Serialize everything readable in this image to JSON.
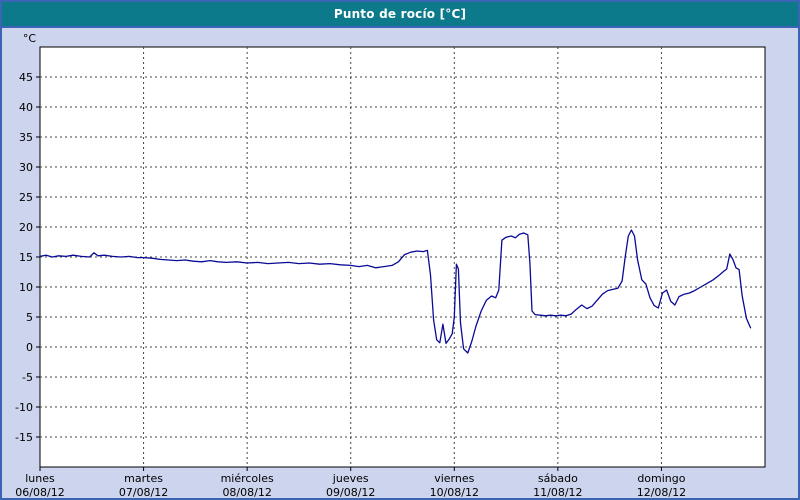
{
  "window": {
    "title": "Punto de rocío [°C]"
  },
  "colors": {
    "title_bar": "#0c7a8a",
    "frame_border": "#3c64b4",
    "page_background": "#cdd5ee",
    "plot_background": "#ffffff",
    "grid": "#444444",
    "axis": "#000000",
    "line": "#0a0a96"
  },
  "chart_data": {
    "type": "line",
    "title": "Punto de rocío [°C]",
    "unit_label": "°C",
    "ylabel": "°C",
    "xlabel": "",
    "ylim": [
      -20,
      50
    ],
    "y_ticks": [
      45,
      40,
      35,
      30,
      25,
      20,
      15,
      10,
      5,
      0,
      -5,
      -10,
      -15
    ],
    "x_days": 7,
    "x_ticks": [
      {
        "position": 0,
        "day": "lunes",
        "date": "06/08/12"
      },
      {
        "position": 1,
        "day": "martes",
        "date": "07/08/12"
      },
      {
        "position": 2,
        "day": "miércoles",
        "date": "08/08/12"
      },
      {
        "position": 3,
        "day": "jueves",
        "date": "09/08/12"
      },
      {
        "position": 4,
        "day": "viernes",
        "date": "10/08/12"
      },
      {
        "position": 5,
        "day": "sábado",
        "date": "11/08/12"
      },
      {
        "position": 6,
        "day": "domingo",
        "date": "12/08/12"
      }
    ],
    "grid": "dashed",
    "legend": "none",
    "series": [
      {
        "name": "Punto de rocío",
        "color": "#0a0a96",
        "points": [
          [
            0.0,
            15.1
          ],
          [
            0.06,
            15.3
          ],
          [
            0.12,
            15.0
          ],
          [
            0.18,
            15.2
          ],
          [
            0.25,
            15.1
          ],
          [
            0.32,
            15.3
          ],
          [
            0.4,
            15.1
          ],
          [
            0.48,
            15.0
          ],
          [
            0.52,
            15.7
          ],
          [
            0.56,
            15.2
          ],
          [
            0.62,
            15.3
          ],
          [
            0.7,
            15.1
          ],
          [
            0.78,
            15.0
          ],
          [
            0.86,
            15.1
          ],
          [
            0.94,
            14.9
          ],
          [
            1.0,
            14.9
          ],
          [
            1.08,
            14.8
          ],
          [
            1.16,
            14.6
          ],
          [
            1.24,
            14.5
          ],
          [
            1.32,
            14.4
          ],
          [
            1.4,
            14.5
          ],
          [
            1.48,
            14.3
          ],
          [
            1.56,
            14.2
          ],
          [
            1.64,
            14.4
          ],
          [
            1.72,
            14.2
          ],
          [
            1.8,
            14.1
          ],
          [
            1.9,
            14.2
          ],
          [
            2.0,
            14.0
          ],
          [
            2.1,
            14.1
          ],
          [
            2.2,
            13.9
          ],
          [
            2.3,
            14.0
          ],
          [
            2.4,
            14.1
          ],
          [
            2.5,
            13.9
          ],
          [
            2.6,
            14.0
          ],
          [
            2.7,
            13.8
          ],
          [
            2.8,
            13.9
          ],
          [
            2.9,
            13.7
          ],
          [
            3.0,
            13.6
          ],
          [
            3.08,
            13.4
          ],
          [
            3.16,
            13.6
          ],
          [
            3.24,
            13.2
          ],
          [
            3.32,
            13.4
          ],
          [
            3.4,
            13.6
          ],
          [
            3.46,
            14.2
          ],
          [
            3.52,
            15.4
          ],
          [
            3.58,
            15.8
          ],
          [
            3.64,
            16.0
          ],
          [
            3.7,
            15.9
          ],
          [
            3.74,
            16.1
          ],
          [
            3.77,
            12.0
          ],
          [
            3.8,
            4.5
          ],
          [
            3.83,
            1.2
          ],
          [
            3.86,
            0.7
          ],
          [
            3.89,
            3.8
          ],
          [
            3.92,
            0.6
          ],
          [
            3.95,
            1.3
          ],
          [
            3.98,
            2.2
          ],
          [
            4.0,
            5.0
          ],
          [
            4.02,
            13.8
          ],
          [
            4.04,
            13.0
          ],
          [
            4.06,
            4.0
          ],
          [
            4.09,
            -0.3
          ],
          [
            4.13,
            -1.0
          ],
          [
            4.17,
            1.0
          ],
          [
            4.21,
            3.5
          ],
          [
            4.26,
            6.0
          ],
          [
            4.31,
            7.8
          ],
          [
            4.36,
            8.5
          ],
          [
            4.4,
            8.2
          ],
          [
            4.43,
            9.5
          ],
          [
            4.46,
            17.8
          ],
          [
            4.5,
            18.3
          ],
          [
            4.55,
            18.5
          ],
          [
            4.59,
            18.2
          ],
          [
            4.63,
            18.8
          ],
          [
            4.67,
            19.0
          ],
          [
            4.71,
            18.7
          ],
          [
            4.73,
            14.0
          ],
          [
            4.75,
            6.0
          ],
          [
            4.78,
            5.4
          ],
          [
            4.83,
            5.3
          ],
          [
            4.88,
            5.2
          ],
          [
            4.93,
            5.3
          ],
          [
            4.98,
            5.2
          ],
          [
            5.03,
            5.3
          ],
          [
            5.08,
            5.2
          ],
          [
            5.13,
            5.5
          ],
          [
            5.18,
            6.3
          ],
          [
            5.23,
            7.0
          ],
          [
            5.28,
            6.4
          ],
          [
            5.33,
            6.8
          ],
          [
            5.38,
            7.8
          ],
          [
            5.43,
            8.8
          ],
          [
            5.48,
            9.4
          ],
          [
            5.53,
            9.6
          ],
          [
            5.58,
            9.8
          ],
          [
            5.62,
            11.0
          ],
          [
            5.65,
            15.0
          ],
          [
            5.68,
            18.5
          ],
          [
            5.71,
            19.5
          ],
          [
            5.74,
            18.5
          ],
          [
            5.77,
            14.5
          ],
          [
            5.81,
            11.2
          ],
          [
            5.85,
            10.5
          ],
          [
            5.89,
            8.2
          ],
          [
            5.93,
            6.9
          ],
          [
            5.97,
            6.5
          ],
          [
            6.01,
            9.0
          ],
          [
            6.05,
            9.5
          ],
          [
            6.09,
            7.6
          ],
          [
            6.13,
            7.0
          ],
          [
            6.17,
            8.4
          ],
          [
            6.22,
            8.8
          ],
          [
            6.27,
            9.0
          ],
          [
            6.32,
            9.4
          ],
          [
            6.38,
            10.0
          ],
          [
            6.44,
            10.6
          ],
          [
            6.5,
            11.2
          ],
          [
            6.56,
            12.0
          ],
          [
            6.6,
            12.6
          ],
          [
            6.63,
            13.0
          ],
          [
            6.66,
            15.5
          ],
          [
            6.69,
            14.6
          ],
          [
            6.72,
            13.2
          ],
          [
            6.75,
            12.9
          ],
          [
            6.78,
            8.5
          ],
          [
            6.82,
            4.8
          ],
          [
            6.86,
            3.2
          ]
        ]
      }
    ]
  }
}
